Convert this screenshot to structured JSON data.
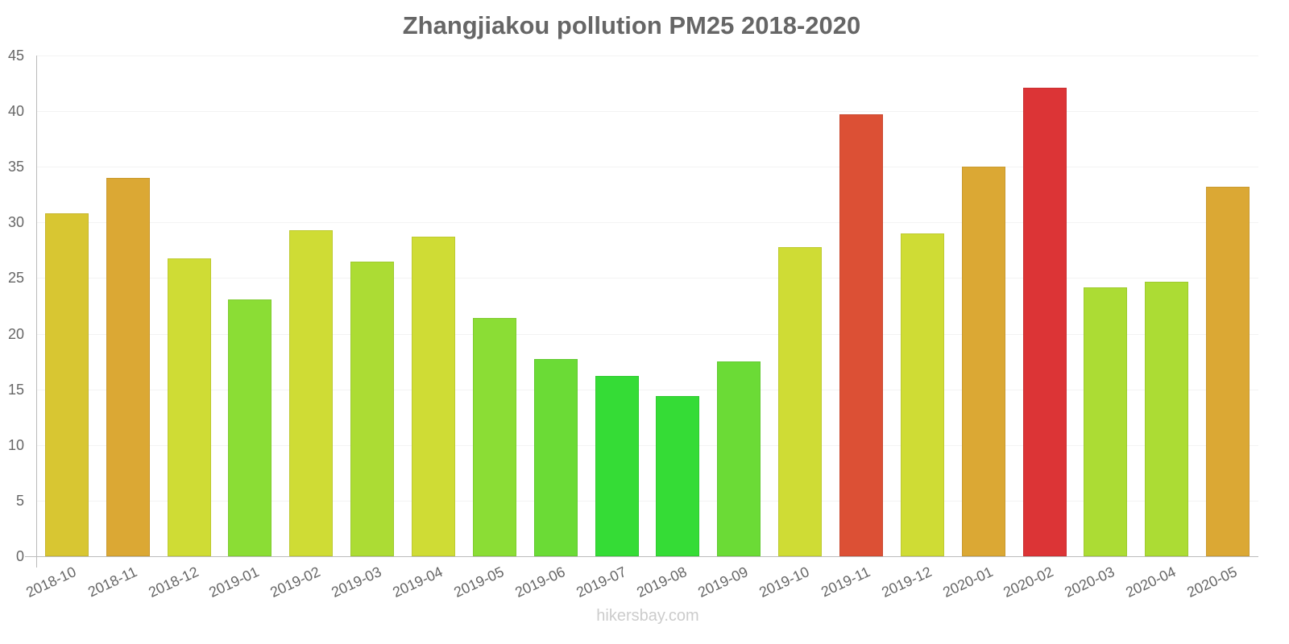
{
  "chart_data": {
    "type": "bar",
    "title": "Zhangjiakou pollution PM25 2018-2020",
    "xlabel": "",
    "ylabel": "",
    "ylim": [
      0,
      45
    ],
    "yticks": [
      0,
      5,
      10,
      15,
      20,
      25,
      30,
      35,
      40,
      45
    ],
    "grid": true,
    "legend": null,
    "categories": [
      "2018-10",
      "2018-11",
      "2018-12",
      "2019-01",
      "2019-02",
      "2019-03",
      "2019-04",
      "2019-05",
      "2019-06",
      "2019-07",
      "2019-08",
      "2019-09",
      "2019-10",
      "2019-11",
      "2019-12",
      "2020-01",
      "2020-02",
      "2020-03",
      "2020-04",
      "2020-05"
    ],
    "values": [
      30.8,
      34.0,
      26.8,
      23.1,
      29.3,
      26.5,
      28.7,
      21.4,
      17.7,
      16.2,
      14.4,
      17.5,
      27.8,
      39.7,
      29.0,
      35.0,
      42.1,
      24.2,
      24.7,
      33.2
    ],
    "colors": [
      "#d8c632",
      "#dba834",
      "#cfdc35",
      "#8bdd35",
      "#cfdc35",
      "#acdc34",
      "#cfdc35",
      "#8bdd35",
      "#6bdb36",
      "#35dc36",
      "#35dc36",
      "#6bdb36",
      "#cfdc35",
      "#dc5035",
      "#cfdc35",
      "#dba834",
      "#dc3436",
      "#acdc34",
      "#acdc34",
      "#dba834"
    ],
    "watermark": "hikersbay.com"
  }
}
